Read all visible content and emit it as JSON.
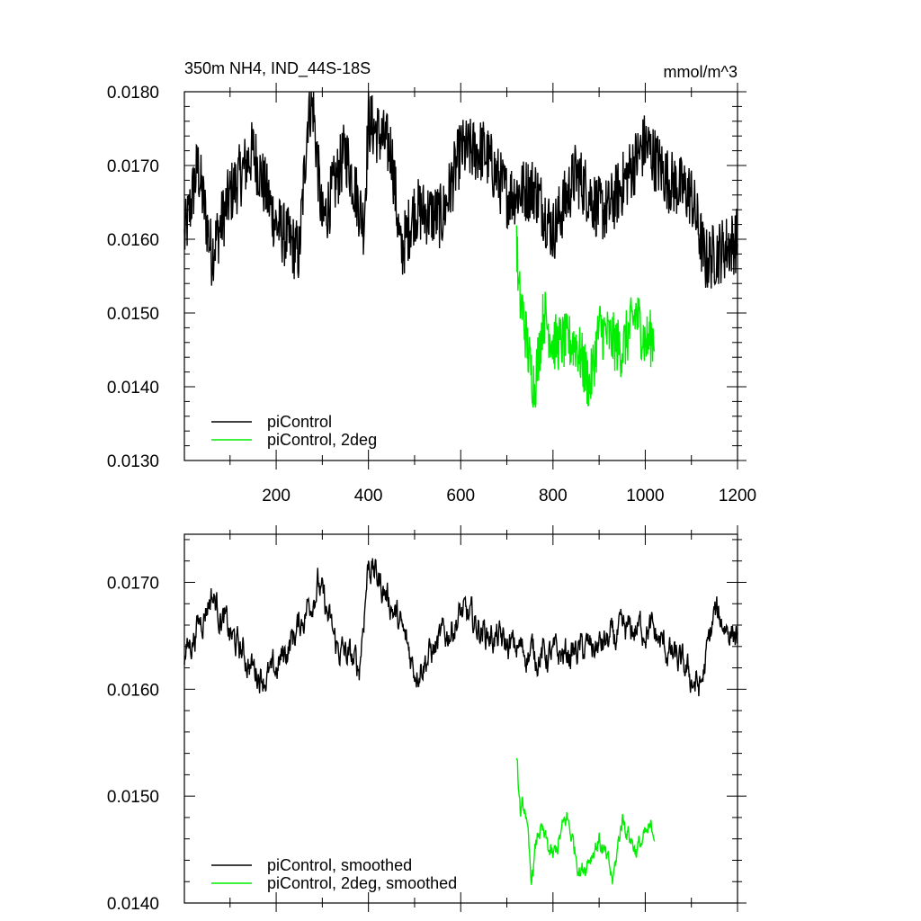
{
  "chart_data": [
    {
      "type": "line",
      "title": "350m NH4, IND_44S-18S",
      "units": "mmol/m^3",
      "xlim": [
        1,
        1200
      ],
      "ylim": [
        0.013,
        0.018
      ],
      "x_ticks": [
        200,
        400,
        600,
        800,
        1000,
        1200
      ],
      "x_tick_labels": [
        "200",
        "400",
        "600",
        "800",
        "1000",
        "1200"
      ],
      "y_ticks": [
        0.013,
        0.014,
        0.015,
        0.016,
        0.017,
        0.018
      ],
      "y_tick_labels": [
        "0.0130",
        "0.0140",
        "0.0150",
        "0.0160",
        "0.0170",
        "0.0180"
      ],
      "grid": false,
      "legend_position": "bottom-left",
      "series": [
        {
          "name": "piControl",
          "color": "#000000",
          "x_range": [
            1,
            1200
          ],
          "mean": 0.0165,
          "noise_amplitude": 0.00045,
          "points": [
            [
              1,
              0.016
            ],
            [
              30,
              0.017
            ],
            [
              60,
              0.0158
            ],
            [
              100,
              0.0166
            ],
            [
              150,
              0.0172
            ],
            [
              200,
              0.0162
            ],
            [
              250,
              0.0158
            ],
            [
              270,
              0.0178
            ],
            [
              280,
              0.0178
            ],
            [
              300,
              0.0162
            ],
            [
              350,
              0.0172
            ],
            [
              390,
              0.0162
            ],
            [
              400,
              0.0176
            ],
            [
              450,
              0.0172
            ],
            [
              470,
              0.0158
            ],
            [
              500,
              0.0164
            ],
            [
              560,
              0.0163
            ],
            [
              600,
              0.0172
            ],
            [
              650,
              0.0172
            ],
            [
              700,
              0.0166
            ],
            [
              760,
              0.0167
            ],
            [
              800,
              0.0161
            ],
            [
              850,
              0.0169
            ],
            [
              900,
              0.0164
            ],
            [
              920,
              0.0164
            ],
            [
              1000,
              0.0173
            ],
            [
              1050,
              0.0168
            ],
            [
              1100,
              0.0166
            ],
            [
              1130,
              0.0157
            ],
            [
              1200,
              0.016
            ]
          ]
        },
        {
          "name": "piControl, 2deg",
          "color": "#00ee00",
          "x_range": [
            721,
            1020
          ],
          "mean": 0.01455,
          "noise_amplitude": 0.0004,
          "points": [
            [
              721,
              0.0161
            ],
            [
              725,
              0.0153
            ],
            [
              735,
              0.015
            ],
            [
              750,
              0.0143
            ],
            [
              760,
              0.014
            ],
            [
              780,
              0.015
            ],
            [
              800,
              0.0146
            ],
            [
              850,
              0.0146
            ],
            [
              880,
              0.014
            ],
            [
              900,
              0.0148
            ],
            [
              950,
              0.0145
            ],
            [
              980,
              0.015
            ],
            [
              1000,
              0.0146
            ],
            [
              1020,
              0.0147
            ]
          ]
        }
      ]
    },
    {
      "type": "line",
      "xlim": [
        1,
        1200
      ],
      "ylim": [
        0.014,
        0.01745
      ],
      "x_ticks": [
        200,
        400,
        600,
        800,
        1000,
        1200
      ],
      "y_ticks": [
        0.014,
        0.015,
        0.016,
        0.017
      ],
      "y_tick_labels": [
        "0.0140",
        "0.0150",
        "0.0160",
        "0.0170"
      ],
      "grid": false,
      "legend_position": "bottom-left",
      "series": [
        {
          "name": "piControl, smoothed",
          "color": "#000000",
          "x_range": [
            1,
            1200
          ],
          "mean": 0.0165,
          "noise_amplitude": 0.00018,
          "points": [
            [
              1,
              0.0163
            ],
            [
              60,
              0.0169
            ],
            [
              100,
              0.0165
            ],
            [
              150,
              0.0162
            ],
            [
              190,
              0.0161
            ],
            [
              250,
              0.0166
            ],
            [
              290,
              0.017
            ],
            [
              330,
              0.0164
            ],
            [
              380,
              0.0162
            ],
            [
              400,
              0.0172
            ],
            [
              450,
              0.0168
            ],
            [
              500,
              0.0162
            ],
            [
              550,
              0.0164
            ],
            [
              600,
              0.0167
            ],
            [
              700,
              0.0164
            ],
            [
              800,
              0.0163
            ],
            [
              900,
              0.0164
            ],
            [
              1000,
              0.0166
            ],
            [
              1120,
              0.016
            ],
            [
              1150,
              0.0167
            ],
            [
              1200,
              0.0165
            ]
          ]
        },
        {
          "name": "piControl, 2deg, smoothed",
          "color": "#00ee00",
          "x_range": [
            721,
            1020
          ],
          "mean": 0.01455,
          "noise_amplitude": 0.00012,
          "points": [
            [
              721,
              0.0153
            ],
            [
              730,
              0.0148
            ],
            [
              740,
              0.0149
            ],
            [
              752,
              0.0142
            ],
            [
              770,
              0.0147
            ],
            [
              800,
              0.0144
            ],
            [
              830,
              0.0148
            ],
            [
              860,
              0.0143
            ],
            [
              900,
              0.0146
            ],
            [
              930,
              0.0142
            ],
            [
              950,
              0.0148
            ],
            [
              980,
              0.0145
            ],
            [
              1000,
              0.0146
            ],
            [
              1020,
              0.0147
            ]
          ]
        }
      ]
    }
  ]
}
